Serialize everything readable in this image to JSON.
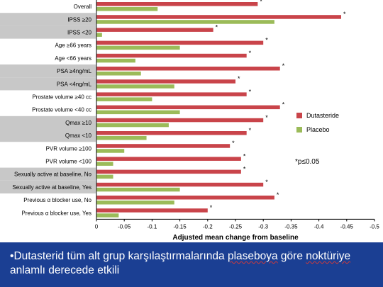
{
  "chart_data": {
    "type": "bar",
    "orientation": "horizontal",
    "categories": [
      "Overall",
      "IPSS ≥20",
      "IPSS <20",
      "Age ≥66 years",
      "Age <66 years",
      "PSA ≥4ng/mL",
      "PSA <4ng/mL",
      "Prostate volume ≥40 cc",
      "Prostate volume <40 cc",
      "Qmax ≥10",
      "Qmax <10",
      "PVR volume ≥100",
      "PVR volume <100",
      "Sexually active at baseline, No",
      "Sexually active at baseline, Yes",
      "Previous α blocker use, No",
      "Previous α blocker use, Yes"
    ],
    "shaded_categories": [
      false,
      true,
      true,
      false,
      false,
      true,
      true,
      false,
      false,
      true,
      true,
      false,
      false,
      true,
      true,
      false,
      false
    ],
    "series": [
      {
        "name": "Dutasteride",
        "color": "#c9444a",
        "values": [
          -0.29,
          -0.44,
          -0.21,
          -0.3,
          -0.27,
          -0.33,
          -0.25,
          -0.27,
          -0.33,
          -0.3,
          -0.27,
          -0.24,
          -0.26,
          -0.26,
          -0.3,
          -0.32,
          -0.2
        ],
        "significant": [
          true,
          true,
          true,
          true,
          true,
          true,
          true,
          true,
          true,
          true,
          true,
          true,
          true,
          true,
          true,
          true,
          true
        ]
      },
      {
        "name": "Placebo",
        "color": "#9bbb59",
        "values": [
          -0.11,
          -0.32,
          -0.01,
          -0.15,
          -0.07,
          -0.08,
          -0.14,
          -0.1,
          -0.15,
          -0.13,
          -0.09,
          -0.05,
          -0.03,
          -0.03,
          -0.15,
          -0.14,
          -0.04
        ]
      }
    ],
    "xlabel": "Adjusted mean change from baseline",
    "xlim": [
      0,
      -0.5
    ],
    "xticks": [
      0,
      -0.05,
      -0.1,
      -0.15,
      -0.2,
      -0.25,
      -0.3,
      -0.35,
      -0.4,
      -0.45,
      -0.5
    ],
    "significance_marker": "*",
    "significance_note": "*p≤0.05",
    "legend_position": "right"
  },
  "banner": {
    "bullet": "•",
    "seg1": "Dutasterid tüm alt grup karşılaştırmalarında ",
    "seg2": "plaseboya",
    "seg3": " göre ",
    "seg4": "noktüriye",
    "seg5": " anlamlı derecede etkili",
    "background": "#1b3f93"
  }
}
